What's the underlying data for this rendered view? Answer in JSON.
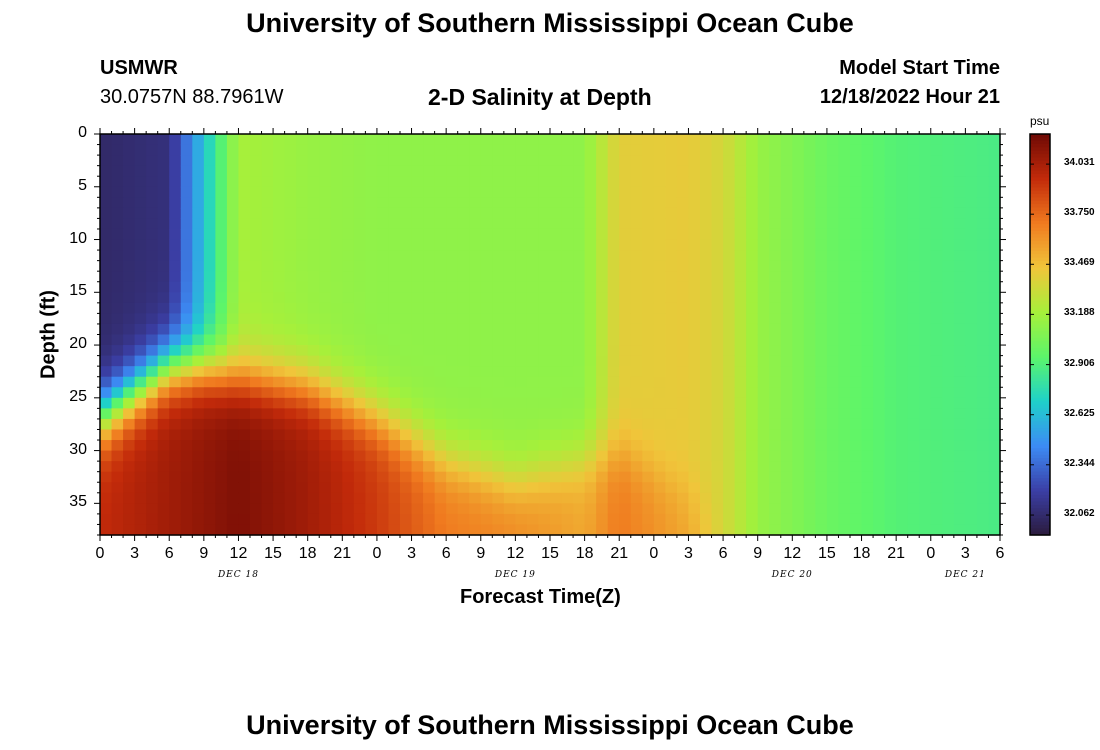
{
  "header": {
    "title": "University of Southern Mississippi Ocean Cube",
    "station": "USMWR",
    "coords": "30.0757N  88.7961W",
    "subtitle": "2-D Salinity at Depth",
    "model_label": "Model Start Time",
    "model_time": "12/18/2022 Hour 21"
  },
  "footer": {
    "title": "University of Southern Mississippi Ocean Cube"
  },
  "colors": {
    "scale": [
      "#2b1b3d",
      "#3b3fa6",
      "#3c8cf5",
      "#1fd1c9",
      "#5cf56a",
      "#a7f03a",
      "#f0c53a",
      "#f07a1f",
      "#c22a0a",
      "#6e0a05"
    ]
  },
  "chart_data": {
    "type": "heatmap",
    "xlabel": "Forecast Time(Z)",
    "ylabel": "Depth (ft)",
    "x_tick_labels": [
      "0",
      "3",
      "6",
      "9",
      "12",
      "15",
      "18",
      "21",
      "0",
      "3",
      "6",
      "9",
      "12",
      "15",
      "18",
      "21",
      "0",
      "3",
      "6",
      "9",
      "12",
      "15",
      "18",
      "21",
      "0",
      "3",
      "6"
    ],
    "x_date_labels": [
      {
        "label": "DEC 18",
        "hour_offset": 12
      },
      {
        "label": "DEC 19",
        "hour_offset": 36
      },
      {
        "label": "DEC 20",
        "hour_offset": 60
      },
      {
        "label": "DEC 21",
        "hour_offset": 75
      }
    ],
    "xlim_hours": [
      0,
      78
    ],
    "y_ticks": [
      0,
      5,
      10,
      15,
      20,
      25,
      30,
      35
    ],
    "ylim": [
      0,
      38
    ],
    "colorbar": {
      "unit": "psu",
      "min": 31.95,
      "max": 34.2,
      "ticks": [
        "34.031",
        "33.750",
        "33.469",
        "33.188",
        "32.906",
        "32.625",
        "32.344",
        "32.062"
      ]
    },
    "salinity_profile": [
      {
        "hour": 0,
        "surface": 32.05,
        "bottom": 33.95,
        "halocline_ft": 27
      },
      {
        "hour": 6,
        "surface": 32.1,
        "bottom": 34.05,
        "halocline_ft": 22
      },
      {
        "hour": 9,
        "surface": 32.65,
        "bottom": 34.1,
        "halocline_ft": 22
      },
      {
        "hour": 12,
        "surface": 33.2,
        "bottom": 34.15,
        "halocline_ft": 23
      },
      {
        "hour": 18,
        "surface": 33.15,
        "bottom": 34.05,
        "halocline_ft": 24
      },
      {
        "hour": 24,
        "surface": 33.12,
        "bottom": 33.9,
        "halocline_ft": 27
      },
      {
        "hour": 30,
        "surface": 33.12,
        "bottom": 33.7,
        "halocline_ft": 31
      },
      {
        "hour": 36,
        "surface": 33.12,
        "bottom": 33.65,
        "halocline_ft": 33
      },
      {
        "hour": 42,
        "surface": 33.12,
        "bottom": 33.55,
        "halocline_ft": 31
      },
      {
        "hour": 45,
        "surface": 33.4,
        "bottom": 33.7,
        "halocline_ft": 30
      },
      {
        "hour": 51,
        "surface": 33.42,
        "bottom": 33.55,
        "halocline_ft": 34
      },
      {
        "hour": 54,
        "surface": 33.35,
        "bottom": 33.35,
        "halocline_ft": 36
      },
      {
        "hour": 57,
        "surface": 33.15,
        "bottom": 33.15,
        "halocline_ft": 38
      },
      {
        "hour": 63,
        "surface": 33.0,
        "bottom": 33.0,
        "halocline_ft": 38
      },
      {
        "hour": 69,
        "surface": 32.92,
        "bottom": 32.92,
        "halocline_ft": 38
      },
      {
        "hour": 78,
        "surface": 32.88,
        "bottom": 32.88,
        "halocline_ft": 38
      }
    ]
  }
}
